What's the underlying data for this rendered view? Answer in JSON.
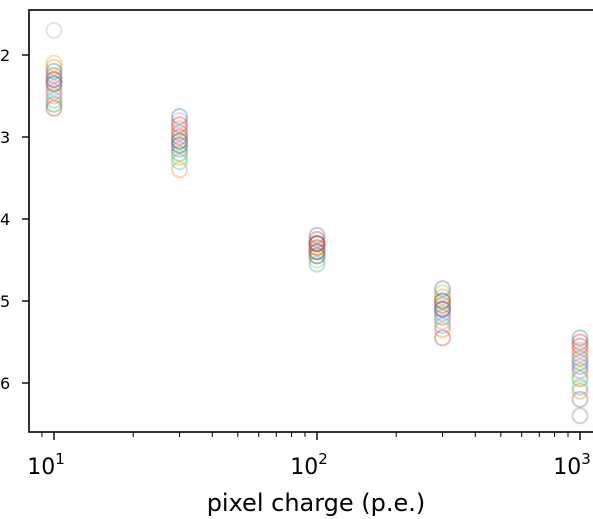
{
  "chart_data": {
    "type": "scatter",
    "xlabel": "pixel charge (p.e.)",
    "xscale": "log",
    "x_tick_labels": [
      {
        "value": 10,
        "base": "10",
        "exp": "1"
      },
      {
        "value": 100,
        "base": "10",
        "exp": "2"
      },
      {
        "value": 1000,
        "base": "10",
        "exp": "3"
      }
    ],
    "y_tick_fragments": [
      "2",
      "3",
      "4",
      "5",
      "6"
    ],
    "x_groups": [
      10,
      30,
      100,
      300,
      1000
    ],
    "marker": "open-circle",
    "marker_alpha": 0.35,
    "grid": false,
    "colors": [
      "#1f77b4",
      "#ff7f0e",
      "#2ca02c",
      "#d62728",
      "#9467bd",
      "#8c564b",
      "#e377c2",
      "#7f7f7f",
      "#bcbd22",
      "#17becf"
    ],
    "series": [
      {
        "values": [
          {
            "x": 10,
            "y": 2.35
          },
          {
            "x": 30,
            "y": 3.05
          },
          {
            "x": 100,
            "y": 4.3
          },
          {
            "x": 300,
            "y": 5.1
          },
          {
            "x": 1000,
            "y": 5.75
          }
        ]
      },
      {
        "values": [
          {
            "x": 10,
            "y": 2.15
          },
          {
            "x": 30,
            "y": 2.9
          },
          {
            "x": 100,
            "y": 4.25
          },
          {
            "x": 300,
            "y": 4.95
          },
          {
            "x": 1000,
            "y": 5.6
          }
        ]
      },
      {
        "values": [
          {
            "x": 10,
            "y": 2.6
          },
          {
            "x": 30,
            "y": 3.2
          },
          {
            "x": 100,
            "y": 4.4
          },
          {
            "x": 300,
            "y": 5.2
          },
          {
            "x": 1000,
            "y": 5.95
          }
        ]
      },
      {
        "values": [
          {
            "x": 10,
            "y": 2.3
          },
          {
            "x": 30,
            "y": 3.0
          },
          {
            "x": 100,
            "y": 4.35
          },
          {
            "x": 300,
            "y": 5.05
          },
          {
            "x": 1000,
            "y": 5.5
          }
        ]
      },
      {
        "values": [
          {
            "x": 10,
            "y": 2.45
          },
          {
            "x": 30,
            "y": 3.15
          },
          {
            "x": 100,
            "y": 4.45
          },
          {
            "x": 300,
            "y": 5.15
          },
          {
            "x": 1000,
            "y": 5.85
          }
        ]
      },
      {
        "values": [
          {
            "x": 10,
            "y": 2.25
          },
          {
            "x": 30,
            "y": 2.95
          },
          {
            "x": 100,
            "y": 4.3
          },
          {
            "x": 300,
            "y": 5.0
          },
          {
            "x": 1000,
            "y": 6.2
          }
        ]
      },
      {
        "values": [
          {
            "x": 10,
            "y": 2.4
          },
          {
            "x": 30,
            "y": 2.8
          },
          {
            "x": 100,
            "y": 4.25
          },
          {
            "x": 300,
            "y": 5.25
          },
          {
            "x": 1000,
            "y": 5.65
          }
        ]
      },
      {
        "values": [
          {
            "x": 10,
            "y": 1.7
          },
          {
            "x": 30,
            "y": 3.1
          },
          {
            "x": 100,
            "y": 4.4
          },
          {
            "x": 300,
            "y": 5.1
          },
          {
            "x": 1000,
            "y": 6.4
          }
        ]
      },
      {
        "values": [
          {
            "x": 10,
            "y": 2.1
          },
          {
            "x": 30,
            "y": 3.25
          },
          {
            "x": 100,
            "y": 4.5
          },
          {
            "x": 300,
            "y": 4.9
          },
          {
            "x": 1000,
            "y": 5.9
          }
        ]
      },
      {
        "values": [
          {
            "x": 10,
            "y": 2.55
          },
          {
            "x": 30,
            "y": 3.3
          },
          {
            "x": 100,
            "y": 4.55
          },
          {
            "x": 300,
            "y": 5.3
          },
          {
            "x": 1000,
            "y": 6.05
          }
        ]
      },
      {
        "values": [
          {
            "x": 10,
            "y": 2.2
          },
          {
            "x": 30,
            "y": 2.75
          },
          {
            "x": 100,
            "y": 4.2
          },
          {
            "x": 300,
            "y": 4.85
          },
          {
            "x": 1000,
            "y": 5.45
          }
        ]
      },
      {
        "values": [
          {
            "x": 10,
            "y": 2.5
          },
          {
            "x": 30,
            "y": 3.4
          },
          {
            "x": 100,
            "y": 4.35
          },
          {
            "x": 300,
            "y": 5.35
          },
          {
            "x": 1000,
            "y": 6.1
          }
        ]
      },
      {
        "values": [
          {
            "x": 10,
            "y": 2.35
          },
          {
            "x": 30,
            "y": 3.05
          },
          {
            "x": 100,
            "y": 4.45
          },
          {
            "x": 300,
            "y": 5.0
          },
          {
            "x": 1000,
            "y": 5.7
          }
        ]
      },
      {
        "values": [
          {
            "x": 10,
            "y": 2.65
          },
          {
            "x": 30,
            "y": 2.85
          },
          {
            "x": 100,
            "y": 4.3
          },
          {
            "x": 300,
            "y": 5.45
          },
          {
            "x": 1000,
            "y": 5.55
          }
        ]
      },
      {
        "values": [
          {
            "x": 10,
            "y": 2.3
          },
          {
            "x": 30,
            "y": 3.1
          },
          {
            "x": 100,
            "y": 4.4
          },
          {
            "x": 300,
            "y": 5.1
          },
          {
            "x": 1000,
            "y": 5.8
          }
        ]
      }
    ]
  }
}
